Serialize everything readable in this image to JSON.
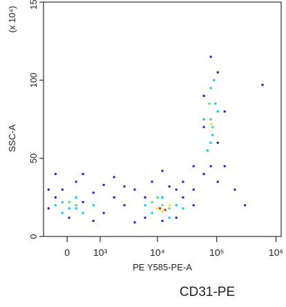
{
  "chart_data": {
    "type": "scatter",
    "title": "CD31-PE",
    "x_label": "PE Y585-PE-A",
    "y_label": "SSC-A",
    "y_unit_label": "(x 10⁴)",
    "xscale": "biexponential",
    "xlim": [
      -630,
      1220000
    ],
    "ylim": [
      0,
      150
    ],
    "xticks": [
      0,
      {
        "value": 1000,
        "label": "10³"
      },
      {
        "value": 10000,
        "label": "10⁴"
      },
      {
        "value": 100000,
        "label": "10⁵"
      },
      {
        "value": 1000000,
        "label": "10⁶"
      }
    ],
    "yticks": [
      0,
      50,
      100,
      150
    ],
    "series": [
      {
        "color": "#1a1ae0",
        "x": [
          -470,
          -280,
          -110,
          48,
          214,
          394,
          724,
          1170,
          1810,
          2740,
          4120,
          6180,
          8100,
          12100,
          15900,
          20800,
          27000,
          40700,
          60600,
          60600,
          79300,
          104000,
          136000,
          202000,
          592000,
          -280,
          394,
          1810,
          2740,
          4120,
          12100,
          27000,
          40700,
          104000,
          79300,
          60600,
          136000,
          724,
          -470,
          1170,
          6180,
          20800,
          300000,
          104000,
          40700
        ],
        "values": [
          18,
          25,
          30,
          12,
          35,
          22,
          28,
          15,
          25,
          20,
          30,
          12,
          35,
          10,
          32,
          12,
          25,
          30,
          40,
          90,
          115,
          60,
          45,
          30,
          97,
          40,
          40,
          38,
          32,
          9,
          42,
          35,
          45,
          105,
          45,
          70,
          80,
          10,
          30,
          33,
          25,
          30,
          20,
          35,
          20
        ]
      },
      {
        "color": "#00c8ff",
        "x": [
          -280,
          -110,
          48,
          214,
          394,
          724,
          8100,
          12100,
          20800,
          15900,
          79300,
          79300,
          104000,
          60600,
          70000,
          90000,
          -110,
          214,
          6180,
          27000,
          85000,
          95000
        ],
        "values": [
          20,
          22,
          18,
          25,
          15,
          20,
          15,
          25,
          20,
          12,
          60,
          95,
          80,
          75,
          55,
          100,
          15,
          18,
          20,
          18,
          65,
          85
        ]
      },
      {
        "color": "#40e070",
        "x": [
          12100,
          8100,
          15900,
          10000,
          79300,
          75000,
          85000,
          48,
          214
        ],
        "values": [
          20,
          22,
          18,
          25,
          75,
          85,
          70,
          22,
          20
        ]
      },
      {
        "color": "#e8e820",
        "x": [
          10000,
          12100,
          15900,
          80000
        ],
        "values": [
          18,
          16,
          20,
          72
        ]
      },
      {
        "color": "#e02020",
        "x": [
          11000,
          13500
        ],
        "values": [
          18,
          17
        ]
      }
    ]
  }
}
